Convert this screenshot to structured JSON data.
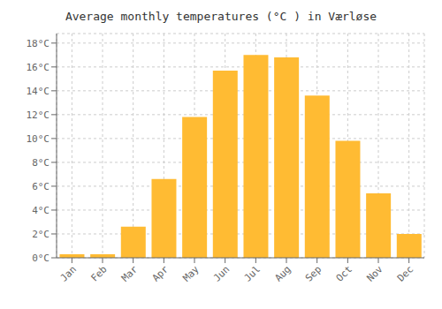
{
  "chart_data": {
    "type": "bar",
    "title": "Average monthly temperatures (°C ) in Værløse",
    "categories": [
      "Jan",
      "Feb",
      "Mar",
      "Apr",
      "May",
      "Jun",
      "Jul",
      "Aug",
      "Sep",
      "Oct",
      "Nov",
      "Dec"
    ],
    "values": [
      0.3,
      0.3,
      2.6,
      6.6,
      11.8,
      15.7,
      17.0,
      16.8,
      13.6,
      9.8,
      5.4,
      2.0
    ],
    "color": "#FFBB33",
    "ylim": [
      0,
      18.8
    ],
    "yticks": [
      {
        "value": 0,
        "label": "0°C"
      },
      {
        "value": 2,
        "label": "2°C"
      },
      {
        "value": 4,
        "label": "4°C"
      },
      {
        "value": 6,
        "label": "6°C"
      },
      {
        "value": 8,
        "label": "8°C"
      },
      {
        "value": 10,
        "label": "10°C"
      },
      {
        "value": 12,
        "label": "12°C"
      },
      {
        "value": 14,
        "label": "14°C"
      },
      {
        "value": 16,
        "label": "16°C"
      },
      {
        "value": 18,
        "label": "18°C"
      }
    ],
    "grid": true
  }
}
